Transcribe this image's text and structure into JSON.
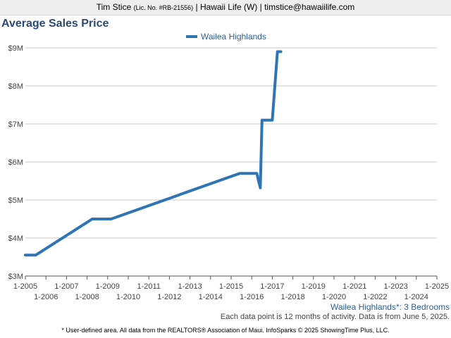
{
  "header": {
    "agent_name": "Tim Stice",
    "license": "(Lic. No. #RB-21556)",
    "rest": "| Hawaii Life (W) | timstice@hawaiilife.com"
  },
  "footer": {
    "subtitle": "Wailea Highlands*: 3 Bedrooms",
    "data_note": "Each data point is 12 months of activity. Data is from June 5, 2025.",
    "source_note": "* User-defined area. All data from the REALTORS® Association of Maui. InfoSparks © 2025 ShowingTime Plus, LLC."
  },
  "chart_data": {
    "type": "line",
    "title": "Average Sales Price",
    "xlabel": "",
    "ylabel": "",
    "ylim": [
      3,
      9.1
    ],
    "xlim": [
      "2005-01",
      "2025-01"
    ],
    "y_ticks": [
      "$3M",
      "$4M",
      "$5M",
      "$6M",
      "$7M",
      "$8M",
      "$9M"
    ],
    "x_ticks_upper": [
      "1-2005",
      "1-2007",
      "1-2009",
      "1-2011",
      "1-2013",
      "1-2015",
      "1-2017",
      "1-2019",
      "1-2021",
      "1-2023",
      "1-2025"
    ],
    "x_ticks_lower": [
      "1-2006",
      "1-2008",
      "1-2010",
      "1-2012",
      "1-2014",
      "1-2016",
      "1-2018",
      "1-2020",
      "1-2022",
      "1-2024"
    ],
    "grid": true,
    "legend_position": "top-center",
    "colors": {
      "series": "#2f74b5",
      "grid": "#c8c8c8",
      "title": "#2b4a72"
    },
    "series": [
      {
        "name": "Wailea Highlands",
        "points": [
          [
            "2005-01",
            3.55
          ],
          [
            "2005-07",
            3.55
          ],
          [
            "2008-04",
            4.5
          ],
          [
            "2009-03",
            4.5
          ],
          [
            "2015-06",
            5.7
          ],
          [
            "2016-04",
            5.7
          ],
          [
            "2016-05",
            5.5
          ],
          [
            "2016-06",
            5.32
          ],
          [
            "2016-07",
            7.1
          ],
          [
            "2017-01",
            7.1
          ],
          [
            "2017-04",
            8.9
          ],
          [
            "2017-06",
            8.9
          ]
        ]
      }
    ]
  }
}
